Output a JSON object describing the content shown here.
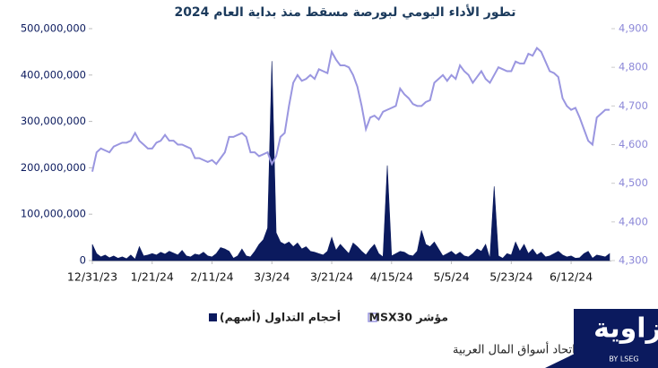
{
  "chart_data": {
    "type": "area-line",
    "title": "تطور الأداء اليومي لبورصة مسقط منذ بداية العام 2024",
    "source": "المصدر: بيانات اتحاد أسواق المال العربية",
    "categories": [
      "12/31/23",
      null,
      null,
      null,
      null,
      null,
      null,
      null,
      null,
      null,
      null,
      null,
      null,
      null,
      "1/21/24",
      null,
      null,
      null,
      null,
      null,
      null,
      null,
      null,
      null,
      null,
      null,
      null,
      null,
      "2/11/24",
      null,
      null,
      null,
      null,
      null,
      null,
      null,
      null,
      null,
      null,
      null,
      null,
      null,
      "3/3/24",
      null,
      null,
      null,
      null,
      null,
      null,
      null,
      null,
      null,
      null,
      null,
      null,
      null,
      "3/21/24",
      null,
      null,
      null,
      null,
      null,
      null,
      null,
      null,
      null,
      null,
      null,
      null,
      null,
      "4/15/24",
      null,
      null,
      null,
      null,
      null,
      null,
      null,
      null,
      null,
      null,
      null,
      null,
      null,
      "5/5/24",
      null,
      null,
      null,
      null,
      null,
      null,
      null,
      null,
      null,
      null,
      null,
      null,
      null,
      "5/23/24",
      null,
      null,
      null,
      null,
      null,
      null,
      null,
      null,
      null,
      null,
      null,
      null,
      null,
      "6/12/24",
      null,
      null,
      null,
      null,
      null,
      null,
      null,
      null,
      null
    ],
    "series": [
      {
        "name": "أحجام التداول (أسهم)",
        "color": "#0b1a5e",
        "kind": "area",
        "axis": "y",
        "values": [
          35000000,
          15000000,
          8000000,
          12000000,
          6000000,
          10000000,
          5000000,
          8000000,
          4000000,
          12000000,
          3000000,
          30000000,
          10000000,
          12000000,
          15000000,
          12000000,
          18000000,
          14000000,
          20000000,
          16000000,
          12000000,
          22000000,
          10000000,
          8000000,
          14000000,
          12000000,
          18000000,
          10000000,
          8000000,
          15000000,
          28000000,
          25000000,
          20000000,
          5000000,
          10000000,
          25000000,
          10000000,
          8000000,
          20000000,
          35000000,
          45000000,
          70000000,
          430000000,
          60000000,
          40000000,
          35000000,
          40000000,
          30000000,
          38000000,
          25000000,
          30000000,
          20000000,
          18000000,
          15000000,
          12000000,
          20000000,
          50000000,
          22000000,
          35000000,
          25000000,
          15000000,
          38000000,
          30000000,
          20000000,
          12000000,
          25000000,
          35000000,
          15000000,
          8000000,
          205000000,
          10000000,
          15000000,
          20000000,
          18000000,
          12000000,
          10000000,
          20000000,
          65000000,
          35000000,
          30000000,
          40000000,
          25000000,
          10000000,
          15000000,
          20000000,
          12000000,
          18000000,
          10000000,
          8000000,
          15000000,
          25000000,
          20000000,
          35000000,
          5000000,
          160000000,
          10000000,
          5000000,
          15000000,
          12000000,
          40000000,
          20000000,
          35000000,
          15000000,
          25000000,
          12000000,
          18000000,
          8000000,
          10000000,
          15000000,
          20000000,
          12000000,
          8000000,
          10000000,
          5000000,
          6000000,
          15000000,
          20000000,
          5000000,
          12000000,
          10000000,
          8000000,
          15000000
        ]
      },
      {
        "name": "مؤشر MSX30",
        "color": "#9a96e0",
        "kind": "line",
        "axis": "y2",
        "values": [
          4530,
          4580,
          4590,
          4585,
          4580,
          4595,
          4600,
          4605,
          4605,
          4610,
          4630,
          4610,
          4600,
          4590,
          4590,
          4605,
          4610,
          4625,
          4610,
          4610,
          4600,
          4600,
          4595,
          4590,
          4565,
          4565,
          4560,
          4555,
          4560,
          4550,
          4565,
          4580,
          4620,
          4620,
          4625,
          4630,
          4620,
          4580,
          4580,
          4570,
          4575,
          4580,
          4550,
          4570,
          4620,
          4630,
          4700,
          4760,
          4780,
          4765,
          4770,
          4780,
          4770,
          4795,
          4790,
          4785,
          4840,
          4820,
          4805,
          4805,
          4800,
          4780,
          4750,
          4700,
          4640,
          4670,
          4675,
          4665,
          4685,
          4690,
          4695,
          4700,
          4745,
          4730,
          4720,
          4705,
          4700,
          4700,
          4710,
          4715,
          4760,
          4770,
          4780,
          4765,
          4780,
          4770,
          4805,
          4790,
          4780,
          4760,
          4775,
          4790,
          4770,
          4760,
          4780,
          4800,
          4795,
          4790,
          4790,
          4815,
          4810,
          4810,
          4835,
          4830,
          4850,
          4840,
          4815,
          4790,
          4785,
          4775,
          4720,
          4700,
          4690,
          4695,
          4670,
          4640,
          4610,
          4600,
          4670,
          4680,
          4690,
          4690
        ]
      }
    ],
    "ylim": [
      0,
      500000000
    ],
    "yticks": [
      {
        "value": 0,
        "label": "0"
      },
      {
        "value": 100000000,
        "label": "100,000,000"
      },
      {
        "value": 200000000,
        "label": "200,000,000"
      },
      {
        "value": 300000000,
        "label": "300,000,000"
      },
      {
        "value": 400000000,
        "label": "400,000,000"
      },
      {
        "value": 500000000,
        "label": "500,000,000"
      }
    ],
    "y2lim": [
      4300,
      4900
    ],
    "y2ticks": [
      {
        "value": 4300,
        "label": "4,300"
      },
      {
        "value": 4400,
        "label": "4,400"
      },
      {
        "value": 4500,
        "label": "4,500"
      },
      {
        "value": 4600,
        "label": "4,600"
      },
      {
        "value": 4700,
        "label": "4,700"
      },
      {
        "value": 4800,
        "label": "4,800"
      },
      {
        "value": 4900,
        "label": "4,900"
      }
    ],
    "grid": false
  },
  "logo": {
    "text": "زاوية",
    "sub": "BY LSEG"
  }
}
